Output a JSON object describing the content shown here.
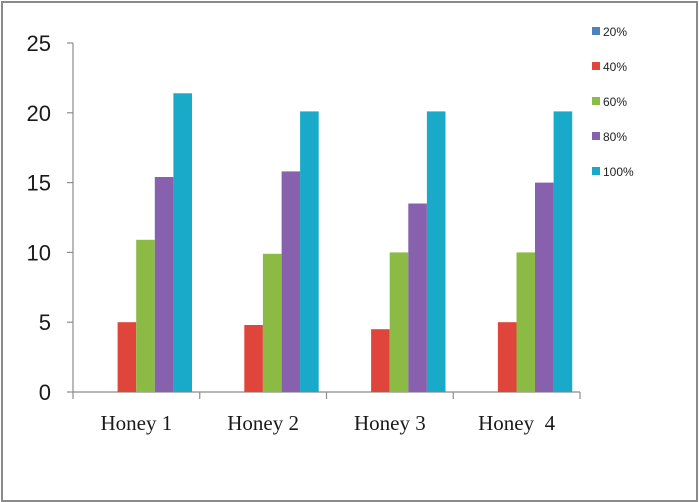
{
  "chart_data": {
    "type": "bar",
    "title": "",
    "xlabel": "",
    "ylabel": "",
    "ylim": [
      0,
      25
    ],
    "yticks": [
      0,
      5,
      10,
      15,
      20,
      25
    ],
    "grid": false,
    "legend_position": "top-right",
    "categories": [
      "Honey 1",
      "Honey 2",
      "Honey 3",
      "Honey  4"
    ],
    "series": [
      {
        "name": "20%",
        "color": "#4f81bd",
        "values": [
          0,
          0,
          0,
          0
        ]
      },
      {
        "name": "40%",
        "color": "#e0453c",
        "values": [
          5,
          4.8,
          4.5,
          5
        ]
      },
      {
        "name": "60%",
        "color": "#8bbb45",
        "values": [
          10.9,
          9.9,
          10,
          10
        ]
      },
      {
        "name": "80%",
        "color": "#8761ae",
        "values": [
          15.4,
          15.8,
          13.5,
          15
        ]
      },
      {
        "name": "100%",
        "color": "#19a9c9",
        "values": [
          21.4,
          20.1,
          20.1,
          20.1
        ]
      }
    ]
  }
}
